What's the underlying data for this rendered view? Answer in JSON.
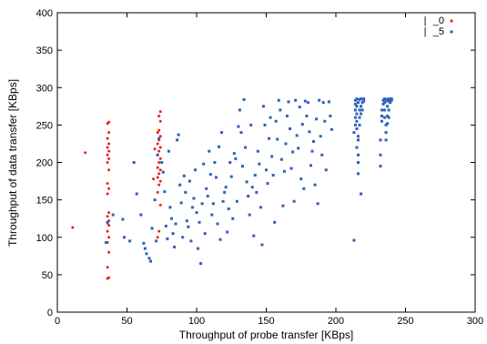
{
  "chart_data": {
    "type": "scatter",
    "title": "",
    "xlabel": "Throughput of probe transfer [KBps]",
    "ylabel": "Throughput of data transfer [KBps]",
    "xlim": [
      0,
      300
    ],
    "ylim": [
      0,
      400
    ],
    "xticks": [
      0,
      50,
      100,
      150,
      200,
      250,
      300
    ],
    "yticks": [
      0,
      50,
      100,
      150,
      200,
      250,
      300,
      350,
      400
    ],
    "xtick_labels": [
      "0",
      "50",
      "100",
      "150",
      "200",
      "250",
      "300"
    ],
    "ytick_labels": [
      "0",
      "50",
      "100",
      "150",
      "200",
      "250",
      "300",
      "350",
      "400"
    ],
    "grid": false,
    "legend_position": "top-right",
    "series": [
      {
        "name": "_0",
        "color": "#e8241c",
        "marker": "dot",
        "points": [
          [
            11,
            113
          ],
          [
            20,
            213
          ],
          [
            36,
            45
          ],
          [
            37,
            46
          ],
          [
            36,
            60
          ],
          [
            37,
            80
          ],
          [
            36,
            93
          ],
          [
            37,
            100
          ],
          [
            36,
            108
          ],
          [
            37,
            116
          ],
          [
            36,
            119
          ],
          [
            37,
            122
          ],
          [
            36,
            128
          ],
          [
            37,
            133
          ],
          [
            36,
            158
          ],
          [
            37,
            165
          ],
          [
            36,
            172
          ],
          [
            37,
            190
          ],
          [
            36,
            200
          ],
          [
            37,
            205
          ],
          [
            36,
            210
          ],
          [
            37,
            215
          ],
          [
            36,
            220
          ],
          [
            37,
            225
          ],
          [
            36,
            232
          ],
          [
            37,
            240
          ],
          [
            36,
            252
          ],
          [
            37,
            254
          ],
          [
            72,
            100
          ],
          [
            73,
            108
          ],
          [
            74,
            143
          ],
          [
            72,
            160
          ],
          [
            73,
            170
          ],
          [
            74,
            175
          ],
          [
            72,
            180
          ],
          [
            73,
            185
          ],
          [
            74,
            190
          ],
          [
            72,
            193
          ],
          [
            73,
            200
          ],
          [
            74,
            205
          ],
          [
            72,
            210
          ],
          [
            73,
            215
          ],
          [
            74,
            220
          ],
          [
            72,
            225
          ],
          [
            73,
            230
          ],
          [
            74,
            235
          ],
          [
            72,
            240
          ],
          [
            73,
            243
          ],
          [
            74,
            255
          ],
          [
            73,
            262
          ],
          [
            74,
            268
          ],
          [
            69,
            178
          ],
          [
            70,
            218
          ]
        ]
      },
      {
        "name": "_5",
        "color": "#2e62b8",
        "marker": "square",
        "points": [
          [
            35,
            93
          ],
          [
            36,
            120
          ],
          [
            40,
            130
          ],
          [
            47,
            124
          ],
          [
            48,
            100
          ],
          [
            52,
            95
          ],
          [
            55,
            200
          ],
          [
            57,
            158
          ],
          [
            60,
            130
          ],
          [
            62,
            92
          ],
          [
            63,
            85
          ],
          [
            64,
            78
          ],
          [
            66,
            72
          ],
          [
            67,
            68
          ],
          [
            68,
            112
          ],
          [
            70,
            150
          ],
          [
            71,
            95
          ],
          [
            72,
            210
          ],
          [
            73,
            232
          ],
          [
            75,
            200
          ],
          [
            76,
            187
          ],
          [
            77,
            161
          ],
          [
            78,
            115
          ],
          [
            79,
            98
          ],
          [
            80,
            215
          ],
          [
            81,
            140
          ],
          [
            82,
            125
          ],
          [
            83,
            105
          ],
          [
            84,
            87
          ],
          [
            85,
            118
          ],
          [
            86,
            230
          ],
          [
            87,
            237
          ],
          [
            88,
            170
          ],
          [
            89,
            146
          ],
          [
            90,
            100
          ],
          [
            91,
            182
          ],
          [
            92,
            160
          ],
          [
            93,
            122
          ],
          [
            94,
            114
          ],
          [
            95,
            175
          ],
          [
            96,
            95
          ],
          [
            97,
            140
          ],
          [
            98,
            152
          ],
          [
            99,
            190
          ],
          [
            100,
            133
          ],
          [
            101,
            85
          ],
          [
            102,
            120
          ],
          [
            103,
            65
          ],
          [
            104,
            145
          ],
          [
            105,
            198
          ],
          [
            106,
            105
          ],
          [
            107,
            165
          ],
          [
            108,
            155
          ],
          [
            109,
            215
          ],
          [
            110,
            184
          ],
          [
            111,
            130
          ],
          [
            112,
            145
          ],
          [
            113,
            200
          ],
          [
            114,
            180
          ],
          [
            115,
            118
          ],
          [
            116,
            221
          ],
          [
            117,
            97
          ],
          [
            118,
            240
          ],
          [
            119,
            148
          ],
          [
            120,
            160
          ],
          [
            121,
            167
          ],
          [
            122,
            107
          ],
          [
            123,
            138
          ],
          [
            124,
            200
          ],
          [
            125,
            181
          ],
          [
            126,
            125
          ],
          [
            127,
            212
          ],
          [
            128,
            205
          ],
          [
            129,
            148
          ],
          [
            130,
            248
          ],
          [
            131,
            270
          ],
          [
            132,
            240
          ],
          [
            133,
            195
          ],
          [
            134,
            284
          ],
          [
            135,
            220
          ],
          [
            136,
            174
          ],
          [
            137,
            155
          ],
          [
            138,
            130
          ],
          [
            139,
            250
          ],
          [
            140,
            167
          ],
          [
            141,
            102
          ],
          [
            142,
            183
          ],
          [
            143,
            160
          ],
          [
            144,
            215
          ],
          [
            145,
            198
          ],
          [
            146,
            140
          ],
          [
            147,
            90
          ],
          [
            148,
            275
          ],
          [
            149,
            250
          ],
          [
            150,
            190
          ],
          [
            151,
            172
          ],
          [
            152,
            232
          ],
          [
            153,
            260
          ],
          [
            154,
            208
          ],
          [
            155,
            183
          ],
          [
            156,
            120
          ],
          [
            157,
            255
          ],
          [
            158,
            231
          ],
          [
            159,
            283
          ],
          [
            160,
            270
          ],
          [
            161,
            204
          ],
          [
            162,
            142
          ],
          [
            163,
            188
          ],
          [
            164,
            225
          ],
          [
            165,
            262
          ],
          [
            166,
            281
          ],
          [
            167,
            245
          ],
          [
            168,
            192
          ],
          [
            169,
            214
          ],
          [
            170,
            148
          ],
          [
            171,
            283
          ],
          [
            172,
            236
          ],
          [
            173,
            219
          ],
          [
            174,
            274
          ],
          [
            175,
            178
          ],
          [
            176,
            251
          ],
          [
            177,
            165
          ],
          [
            178,
            282
          ],
          [
            179,
            262
          ],
          [
            180,
            280
          ],
          [
            181,
            241
          ],
          [
            182,
            196
          ],
          [
            183,
            215
          ],
          [
            184,
            228
          ],
          [
            185,
            170
          ],
          [
            186,
            258
          ],
          [
            187,
            145
          ],
          [
            188,
            283
          ],
          [
            189,
            235
          ],
          [
            190,
            210
          ],
          [
            191,
            280
          ],
          [
            192,
            255
          ],
          [
            193,
            190
          ],
          [
            195,
            281
          ],
          [
            196,
            262
          ],
          [
            197,
            244
          ],
          [
            213,
            96
          ],
          [
            213,
            240
          ],
          [
            214,
            250
          ],
          [
            214,
            260
          ],
          [
            214,
            270
          ],
          [
            214,
            278
          ],
          [
            214,
            283
          ],
          [
            215,
            285
          ],
          [
            215,
            275
          ],
          [
            215,
            265
          ],
          [
            215,
            255
          ],
          [
            215,
            245
          ],
          [
            216,
            230
          ],
          [
            216,
            210
          ],
          [
            216,
            200
          ],
          [
            216,
            185
          ],
          [
            216,
            280
          ],
          [
            217,
            284
          ],
          [
            217,
            270
          ],
          [
            217,
            260
          ],
          [
            217,
            250
          ],
          [
            218,
            158
          ],
          [
            218,
            285
          ],
          [
            218,
            275
          ],
          [
            218,
            265
          ],
          [
            219,
            280
          ],
          [
            219,
            270
          ],
          [
            220,
            285
          ],
          [
            220,
            282
          ],
          [
            215,
            220
          ],
          [
            216,
            235
          ],
          [
            232,
            195
          ],
          [
            232,
            210
          ],
          [
            232,
            230
          ],
          [
            233,
            255
          ],
          [
            233,
            262
          ],
          [
            233,
            270
          ],
          [
            234,
            278
          ],
          [
            234,
            283
          ],
          [
            235,
            285
          ],
          [
            235,
            280
          ],
          [
            235,
            270
          ],
          [
            235,
            260
          ],
          [
            236,
            250
          ],
          [
            236,
            240
          ],
          [
            236,
            230
          ],
          [
            236,
            284
          ],
          [
            237,
            282
          ],
          [
            237,
            275
          ],
          [
            237,
            262
          ],
          [
            237,
            252
          ],
          [
            238,
            285
          ],
          [
            238,
            283
          ],
          [
            238,
            270
          ],
          [
            238,
            260
          ],
          [
            239,
            284
          ],
          [
            239,
            280
          ],
          [
            240,
            285
          ],
          [
            240,
            283
          ]
        ]
      }
    ]
  }
}
